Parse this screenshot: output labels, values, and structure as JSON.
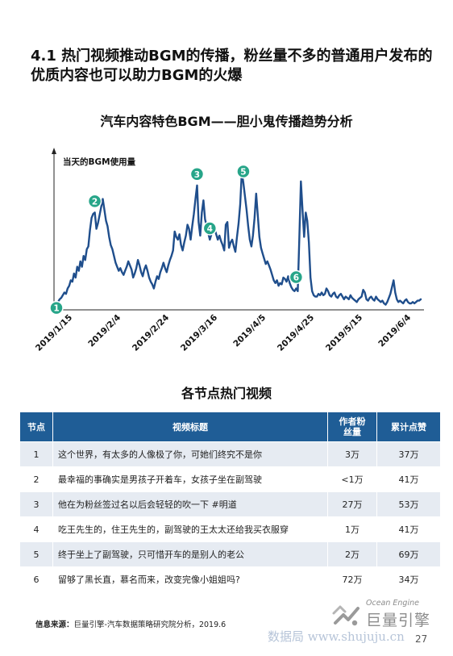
{
  "title": "4.1 热门视频推动BGM的传播，粉丝量不多的普通用户发布的优质内容也可以助力BGM的火爆",
  "chart_title": "汽车内容特色BGM——胆小鬼传播趋势分析",
  "chart_data": {
    "type": "line",
    "ylabel": "当天的BGM使用量",
    "x_ticks": [
      "2019/1/15",
      "2019/2/4",
      "2019/2/24",
      "2019/3/16",
      "2019/4/5",
      "2019/4/25",
      "2019/5/15",
      "2019/6/4"
    ],
    "x_start": "2019/1/15",
    "x_end": "2019/6/28",
    "values": [
      2,
      4,
      6,
      7,
      9,
      11,
      10,
      14,
      16,
      20,
      19,
      25,
      22,
      30,
      27,
      34,
      30,
      38,
      35,
      43,
      45,
      57,
      66,
      69,
      70,
      58,
      62,
      68,
      74,
      80,
      72,
      64,
      60,
      52,
      46,
      43,
      38,
      33,
      30,
      27,
      29,
      26,
      24,
      27,
      30,
      34,
      31,
      28,
      22,
      25,
      29,
      35,
      31,
      26,
      23,
      28,
      31,
      27,
      22,
      19,
      17,
      14,
      19,
      23,
      21,
      26,
      29,
      33,
      29,
      26,
      31,
      35,
      38,
      42,
      56,
      52,
      50,
      54,
      46,
      42,
      48,
      53,
      61,
      58,
      50,
      60,
      69,
      80,
      90,
      63,
      53,
      70,
      79,
      65,
      60,
      55,
      50,
      54,
      61,
      58,
      54,
      50,
      53,
      49,
      46,
      42,
      61,
      63,
      44,
      48,
      50,
      45,
      41,
      52,
      62,
      76,
      100,
      92,
      82,
      72,
      60,
      50,
      45,
      53,
      66,
      84,
      68,
      52,
      44,
      40,
      36,
      32,
      34,
      31,
      28,
      24,
      20,
      18,
      20,
      16,
      18,
      17,
      22,
      21,
      19,
      23,
      18,
      15,
      13,
      12,
      14,
      12,
      50,
      93,
      72,
      52,
      70,
      64,
      48,
      22,
      12,
      9,
      8,
      8,
      10,
      9,
      11,
      9,
      10,
      14,
      12,
      9,
      8,
      10,
      11,
      8,
      7,
      9,
      10,
      8,
      6,
      8,
      7,
      6,
      9,
      7,
      6,
      5,
      4,
      6,
      7,
      8,
      13,
      11,
      6,
      5,
      7,
      8,
      6,
      5,
      8,
      6,
      5,
      4,
      5,
      3,
      2,
      4,
      7,
      10,
      15,
      20,
      11,
      6,
      4,
      5,
      4,
      3,
      5,
      6,
      4,
      3,
      3,
      4,
      3,
      4,
      5,
      5,
      6
    ],
    "nodes": [
      {
        "label": "1",
        "index": 0
      },
      {
        "label": "2",
        "index": 24
      },
      {
        "label": "3",
        "index": 88
      },
      {
        "label": "4",
        "index": 96
      },
      {
        "label": "5",
        "index": 117
      },
      {
        "label": "6",
        "index": 150
      }
    ],
    "line_color": "#1f4e8c",
    "node_color": "#27a589"
  },
  "section_title": "各节点热门视频",
  "table": {
    "headers": {
      "node": "节点",
      "video": "视频标题",
      "author_fans": "作者粉丝量",
      "cumulative_likes": "累计点赞"
    },
    "rows": [
      {
        "node": "1",
        "video": "这个世界，有太多的人像极了你，可她们终究不是你",
        "author_fans": "3万",
        "cumulative_likes": "37万"
      },
      {
        "node": "2",
        "video": "最幸福的事确实是男孩子开着车，女孩子坐在副驾驶",
        "author_fans": "<1万",
        "cumulative_likes": "41万"
      },
      {
        "node": "3",
        "video": "他在为粉丝签过名以后会轻轻的吹一下 #明道",
        "author_fans": "27万",
        "cumulative_likes": "53万"
      },
      {
        "node": "4",
        "video": "吃王先生的，住王先生的，副驾驶的王太太还给我买衣服穿",
        "author_fans": "1万",
        "cumulative_likes": "41万"
      },
      {
        "node": "5",
        "video": "终于坐上了副驾驶，只可惜开车的是别人的老公",
        "author_fans": "2万",
        "cumulative_likes": "69万"
      },
      {
        "node": "6",
        "video": "留够了黑长直，慕名而来，改变完像小姐姐吗?",
        "author_fans": "72万",
        "cumulative_likes": "34万"
      }
    ]
  },
  "source": {
    "label": "信息来源：",
    "text": "巨量引擎-汽车数据策略研究院分析，2019.6"
  },
  "logo": {
    "en": "Ocean Engine",
    "cn": "巨量引擎",
    "icon": "ocean-engine-logo-icon"
  },
  "watermark": "数据局  www.shujuju.cn",
  "page_number": "27"
}
